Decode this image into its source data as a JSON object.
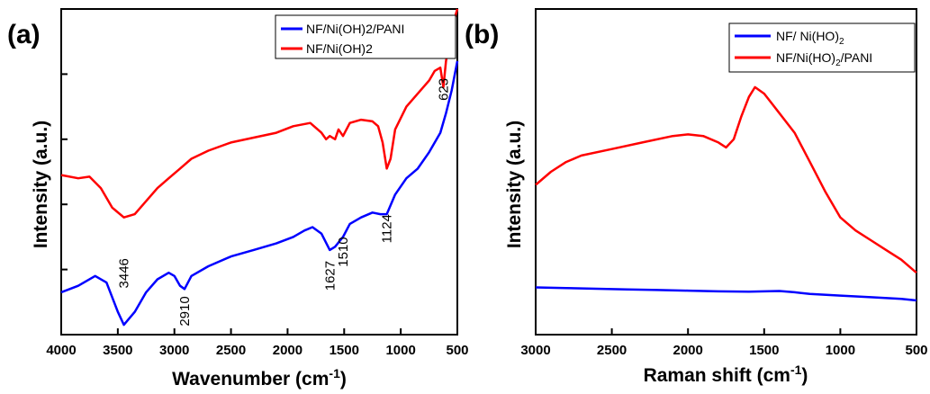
{
  "chart_data": [
    {
      "panel_label": "(a)",
      "type": "line",
      "xlabel": "Wavenumber (cm",
      "xlabel_sup": "-1",
      "xlabel_end": ")",
      "ylabel": "Intensity (a.u.)",
      "xlim": [
        4000,
        500
      ],
      "ylim": [
        0,
        10
      ],
      "x_reversed": true,
      "xticks": [
        4000,
        3500,
        3000,
        2500,
        2000,
        1500,
        1000,
        500
      ],
      "xtick_labels": [
        "4000",
        "3500",
        "3000",
        "2500",
        "2000",
        "1500",
        "1000",
        "500"
      ],
      "legend": {
        "position": "top-right"
      },
      "series": [
        {
          "name": "NF/Ni(OH)2/PANI",
          "color": "#0000ff",
          "x": [
            4000,
            3850,
            3700,
            3600,
            3500,
            3446,
            3350,
            3250,
            3150,
            3050,
            3000,
            2950,
            2910,
            2850,
            2700,
            2500,
            2300,
            2100,
            1950,
            1850,
            1780,
            1700,
            1627,
            1580,
            1510,
            1450,
            1350,
            1250,
            1180,
            1124,
            1050,
            950,
            850,
            750,
            650,
            600,
            550,
            500
          ],
          "y": [
            1.3,
            1.5,
            1.8,
            1.6,
            0.7,
            0.3,
            0.7,
            1.3,
            1.7,
            1.9,
            1.8,
            1.5,
            1.4,
            1.8,
            2.1,
            2.4,
            2.6,
            2.8,
            3.0,
            3.2,
            3.3,
            3.1,
            2.6,
            2.7,
            3.0,
            3.4,
            3.6,
            3.75,
            3.7,
            3.7,
            4.3,
            4.8,
            5.1,
            5.6,
            6.2,
            6.8,
            7.5,
            8.4
          ]
        },
        {
          "name": "NF/Ni(OH)2",
          "color": "#ff0000",
          "x": [
            4000,
            3850,
            3750,
            3650,
            3550,
            3446,
            3350,
            3250,
            3150,
            3050,
            2950,
            2850,
            2700,
            2500,
            2300,
            2100,
            1950,
            1800,
            1700,
            1660,
            1627,
            1580,
            1550,
            1510,
            1450,
            1350,
            1250,
            1200,
            1160,
            1124,
            1090,
            1050,
            950,
            850,
            750,
            700,
            650,
            623,
            600,
            550,
            500
          ],
          "y": [
            4.9,
            4.8,
            4.85,
            4.5,
            3.9,
            3.6,
            3.7,
            4.1,
            4.5,
            4.8,
            5.1,
            5.4,
            5.65,
            5.9,
            6.05,
            6.2,
            6.4,
            6.5,
            6.2,
            6.0,
            6.1,
            6.0,
            6.3,
            6.1,
            6.5,
            6.6,
            6.55,
            6.4,
            5.9,
            5.1,
            5.4,
            6.3,
            7.0,
            7.4,
            7.8,
            8.1,
            8.2,
            7.6,
            8.4,
            9.4,
            10.0
          ]
        }
      ],
      "annotations": [
        {
          "text": "3446",
          "x": 3446
        },
        {
          "text": "2910",
          "x": 2910
        },
        {
          "text": "1627",
          "x": 1627
        },
        {
          "text": "1510",
          "x": 1510
        },
        {
          "text": "1124",
          "x": 1124
        },
        {
          "text": "623",
          "x": 623
        }
      ]
    },
    {
      "panel_label": "(b)",
      "type": "line",
      "xlabel": "Raman shift (cm",
      "xlabel_sup": "-1",
      "xlabel_end": ")",
      "ylabel": "Intensity (a.u.)",
      "xlim": [
        3000,
        500
      ],
      "ylim": [
        0,
        10
      ],
      "x_reversed": true,
      "xticks": [
        3000,
        2500,
        2000,
        1500,
        1000,
        500
      ],
      "xtick_labels": [
        "3000",
        "2500",
        "2000",
        "1500",
        "1000",
        "500"
      ],
      "legend": {
        "position": "top-right"
      },
      "series": [
        {
          "name": "NF/ Ni(HO)",
          "name_sub": "2",
          "name_end": "",
          "color": "#0000ff",
          "x": [
            3000,
            2800,
            2600,
            2400,
            2200,
            2000,
            1800,
            1600,
            1400,
            1300,
            1200,
            1000,
            800,
            600,
            500
          ],
          "y": [
            1.45,
            1.43,
            1.41,
            1.39,
            1.37,
            1.35,
            1.33,
            1.32,
            1.34,
            1.3,
            1.25,
            1.2,
            1.15,
            1.1,
            1.05
          ]
        },
        {
          "name": "NF/Ni(HO)",
          "name_sub": "2",
          "name_end": "/PANI",
          "color": "#ff0000",
          "x": [
            3000,
            2900,
            2800,
            2700,
            2500,
            2300,
            2100,
            2000,
            1900,
            1800,
            1750,
            1700,
            1650,
            1600,
            1560,
            1500,
            1450,
            1400,
            1300,
            1200,
            1100,
            1000,
            900,
            800,
            700,
            600,
            500
          ],
          "y": [
            4.6,
            5.0,
            5.3,
            5.5,
            5.7,
            5.9,
            6.1,
            6.15,
            6.1,
            5.9,
            5.75,
            6.0,
            6.7,
            7.3,
            7.6,
            7.4,
            7.1,
            6.8,
            6.2,
            5.3,
            4.4,
            3.6,
            3.2,
            2.9,
            2.6,
            2.3,
            1.9
          ]
        }
      ]
    }
  ]
}
